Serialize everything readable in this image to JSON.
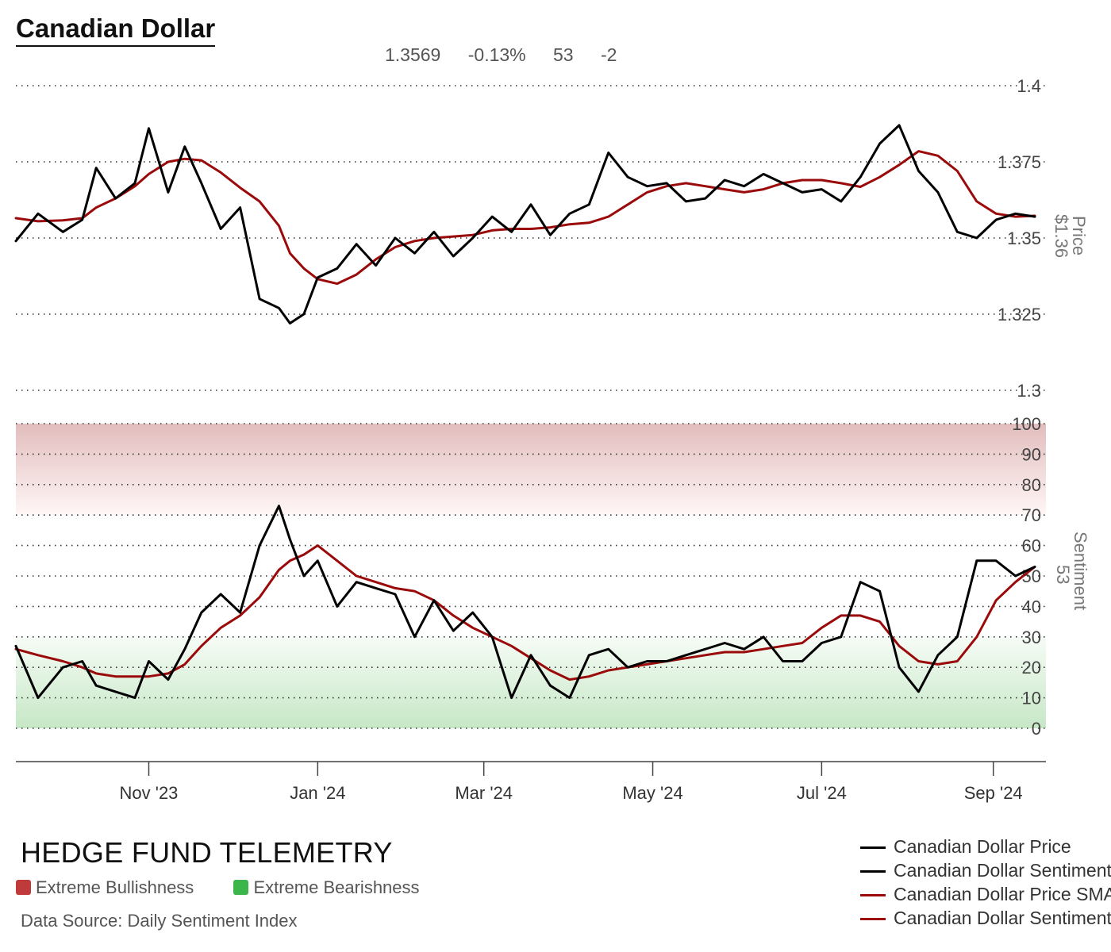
{
  "header": {
    "title": "Canadian Dollar",
    "stats": [
      "1.3569",
      "-0.13%",
      "53",
      "-2"
    ]
  },
  "footer": {
    "brand": "HEDGE FUND TELEMETRY",
    "zone_bull": "Extreme Bullishness",
    "zone_bear": "Extreme Bearishness",
    "source": "Data Source: Daily Sentiment Index"
  },
  "colors": {
    "raw_series": "#000000",
    "sma_series": "#9b0a0a",
    "extreme_bullish": "#c0393b",
    "extreme_bearish": "#3cb54a",
    "axis_text": "#555555"
  },
  "legend": [
    {
      "label": "Canadian Dollar Price",
      "color": "#000000"
    },
    {
      "label": "Canadian Dollar Sentiment",
      "color": "#000000"
    },
    {
      "label": "Canadian Dollar Price SMA",
      "color": "#9b0a0a"
    },
    {
      "label": "Canadian Dollar Sentiment SMA",
      "color": "#9b0a0a"
    }
  ],
  "chart_data": [
    {
      "type": "line",
      "panel": "price",
      "axis_title": "Price",
      "last_value_label": "$1.36",
      "y_ticks": [
        "1.4",
        "1.375",
        "1.35",
        "1.325",
        "1.3"
      ],
      "ylim": [
        1.3,
        1.4
      ],
      "x_ticks": [
        "Nov '23",
        "Jan '24",
        "Mar '24",
        "May '24",
        "Jul '24",
        "Sep '24"
      ],
      "grid": "horizontal dotted",
      "series": [
        {
          "name": "Canadian Dollar Price",
          "x": [
            "2023-09-14",
            "2023-09-22",
            "2023-10-01",
            "2023-10-08",
            "2023-10-13",
            "2023-10-20",
            "2023-10-27",
            "2023-11-01",
            "2023-11-08",
            "2023-11-14",
            "2023-11-20",
            "2023-11-27",
            "2023-12-04",
            "2023-12-11",
            "2023-12-18",
            "2023-12-22",
            "2023-12-27",
            "2024-01-01",
            "2024-01-08",
            "2024-01-15",
            "2024-01-22",
            "2024-01-29",
            "2024-02-05",
            "2024-02-12",
            "2024-02-19",
            "2024-02-26",
            "2024-03-04",
            "2024-03-11",
            "2024-03-18",
            "2024-03-25",
            "2024-04-01",
            "2024-04-08",
            "2024-04-15",
            "2024-04-22",
            "2024-04-29",
            "2024-05-06",
            "2024-05-13",
            "2024-05-20",
            "2024-05-27",
            "2024-06-03",
            "2024-06-10",
            "2024-06-17",
            "2024-06-24",
            "2024-07-01",
            "2024-07-08",
            "2024-07-15",
            "2024-07-22",
            "2024-07-29",
            "2024-08-05",
            "2024-08-12",
            "2024-08-19",
            "2024-08-26",
            "2024-09-02",
            "2024-09-09",
            "2024-09-16"
          ],
          "values": [
            1.349,
            1.358,
            1.352,
            1.356,
            1.373,
            1.363,
            1.368,
            1.386,
            1.365,
            1.38,
            1.368,
            1.353,
            1.36,
            1.33,
            1.327,
            1.322,
            1.325,
            1.337,
            1.34,
            1.348,
            1.341,
            1.35,
            1.345,
            1.352,
            1.344,
            1.35,
            1.357,
            1.352,
            1.361,
            1.351,
            1.358,
            1.361,
            1.378,
            1.37,
            1.367,
            1.368,
            1.362,
            1.363,
            1.369,
            1.367,
            1.371,
            1.368,
            1.365,
            1.366,
            1.362,
            1.37,
            1.381,
            1.387,
            1.372,
            1.365,
            1.352,
            1.35,
            1.356,
            1.358,
            1.357
          ]
        },
        {
          "name": "Canadian Dollar Price SMA",
          "x": [
            "2023-09-14",
            "2023-09-22",
            "2023-10-01",
            "2023-10-08",
            "2023-10-13",
            "2023-10-20",
            "2023-10-27",
            "2023-11-01",
            "2023-11-08",
            "2023-11-14",
            "2023-11-20",
            "2023-11-27",
            "2023-12-04",
            "2023-12-11",
            "2023-12-18",
            "2023-12-22",
            "2023-12-27",
            "2024-01-01",
            "2024-01-08",
            "2024-01-15",
            "2024-01-22",
            "2024-01-29",
            "2024-02-05",
            "2024-02-12",
            "2024-02-19",
            "2024-02-26",
            "2024-03-04",
            "2024-03-11",
            "2024-03-18",
            "2024-03-25",
            "2024-04-01",
            "2024-04-08",
            "2024-04-15",
            "2024-04-22",
            "2024-04-29",
            "2024-05-06",
            "2024-05-13",
            "2024-05-20",
            "2024-05-27",
            "2024-06-03",
            "2024-06-10",
            "2024-06-17",
            "2024-06-24",
            "2024-07-01",
            "2024-07-08",
            "2024-07-15",
            "2024-07-22",
            "2024-07-29",
            "2024-08-05",
            "2024-08-12",
            "2024-08-19",
            "2024-08-26",
            "2024-09-02",
            "2024-09-09",
            "2024-09-16"
          ],
          "values": [
            1.3565,
            1.3555,
            1.3558,
            1.3565,
            1.36,
            1.363,
            1.367,
            1.371,
            1.375,
            1.376,
            1.3755,
            1.3715,
            1.3665,
            1.362,
            1.354,
            1.345,
            1.34,
            1.3365,
            1.335,
            1.338,
            1.343,
            1.347,
            1.349,
            1.35,
            1.3505,
            1.351,
            1.3525,
            1.353,
            1.353,
            1.3535,
            1.3545,
            1.355,
            1.357,
            1.361,
            1.365,
            1.367,
            1.368,
            1.367,
            1.366,
            1.365,
            1.366,
            1.368,
            1.369,
            1.369,
            1.368,
            1.3668,
            1.37,
            1.374,
            1.3785,
            1.377,
            1.372,
            1.362,
            1.358,
            1.357,
            1.3573
          ]
        }
      ]
    },
    {
      "type": "line",
      "panel": "sentiment",
      "axis_title": "Sentiment",
      "last_value_label": "53",
      "y_ticks": [
        "100",
        "90",
        "80",
        "70",
        "60",
        "50",
        "40",
        "30",
        "20",
        "10",
        "0"
      ],
      "ylim": [
        0,
        100
      ],
      "bands": [
        {
          "label": "Extreme Bullishness",
          "from": 70,
          "to": 100
        },
        {
          "label": "Extreme Bearishness",
          "from": 0,
          "to": 30
        }
      ],
      "series": [
        {
          "name": "Canadian Dollar Sentiment",
          "x": [
            "2023-09-14",
            "2023-09-22",
            "2023-10-01",
            "2023-10-08",
            "2023-10-13",
            "2023-10-20",
            "2023-10-27",
            "2023-11-01",
            "2023-11-08",
            "2023-11-14",
            "2023-11-20",
            "2023-11-27",
            "2023-12-04",
            "2023-12-11",
            "2023-12-18",
            "2023-12-22",
            "2023-12-27",
            "2024-01-01",
            "2024-01-08",
            "2024-01-15",
            "2024-01-22",
            "2024-01-29",
            "2024-02-05",
            "2024-02-12",
            "2024-02-19",
            "2024-02-26",
            "2024-03-04",
            "2024-03-11",
            "2024-03-18",
            "2024-03-25",
            "2024-04-01",
            "2024-04-08",
            "2024-04-15",
            "2024-04-22",
            "2024-04-29",
            "2024-05-06",
            "2024-05-13",
            "2024-05-20",
            "2024-05-27",
            "2024-06-03",
            "2024-06-10",
            "2024-06-17",
            "2024-06-24",
            "2024-07-01",
            "2024-07-08",
            "2024-07-15",
            "2024-07-22",
            "2024-07-29",
            "2024-08-05",
            "2024-08-12",
            "2024-08-19",
            "2024-08-26",
            "2024-09-02",
            "2024-09-09",
            "2024-09-16"
          ],
          "values": [
            27,
            10,
            20,
            22,
            14,
            12,
            10,
            22,
            16,
            26,
            38,
            44,
            38,
            60,
            73,
            62,
            50,
            55,
            40,
            48,
            46,
            44,
            30,
            42,
            32,
            38,
            30,
            10,
            24,
            14,
            10,
            24,
            26,
            20,
            22,
            22,
            24,
            26,
            28,
            26,
            30,
            22,
            22,
            28,
            30,
            48,
            45,
            20,
            12,
            24,
            30,
            55,
            55,
            50,
            53
          ]
        },
        {
          "name": "Canadian Dollar Sentiment SMA",
          "x": [
            "2023-09-14",
            "2023-09-22",
            "2023-10-01",
            "2023-10-08",
            "2023-10-13",
            "2023-10-20",
            "2023-10-27",
            "2023-11-01",
            "2023-11-08",
            "2023-11-14",
            "2023-11-20",
            "2023-11-27",
            "2023-12-04",
            "2023-12-11",
            "2023-12-18",
            "2023-12-22",
            "2023-12-27",
            "2024-01-01",
            "2024-01-08",
            "2024-01-15",
            "2024-01-22",
            "2024-01-29",
            "2024-02-05",
            "2024-02-12",
            "2024-02-19",
            "2024-02-26",
            "2024-03-04",
            "2024-03-11",
            "2024-03-18",
            "2024-03-25",
            "2024-04-01",
            "2024-04-08",
            "2024-04-15",
            "2024-04-22",
            "2024-04-29",
            "2024-05-06",
            "2024-05-13",
            "2024-05-20",
            "2024-05-27",
            "2024-06-03",
            "2024-06-10",
            "2024-06-17",
            "2024-06-24",
            "2024-07-01",
            "2024-07-08",
            "2024-07-15",
            "2024-07-22",
            "2024-07-29",
            "2024-08-05",
            "2024-08-12",
            "2024-08-19",
            "2024-08-26",
            "2024-09-02",
            "2024-09-09",
            "2024-09-16"
          ],
          "values": [
            26,
            24,
            22,
            20,
            18,
            17,
            17,
            17,
            18,
            21,
            27,
            33,
            37,
            43,
            52,
            55,
            57,
            60,
            55,
            50,
            48,
            46,
            45,
            42,
            37,
            33,
            30,
            27,
            23,
            19,
            16,
            17,
            19,
            20,
            21,
            22,
            23,
            24,
            25,
            25,
            26,
            27,
            28,
            33,
            37,
            37,
            35,
            27,
            22,
            21,
            22,
            30,
            42,
            48,
            53
          ]
        }
      ]
    }
  ]
}
